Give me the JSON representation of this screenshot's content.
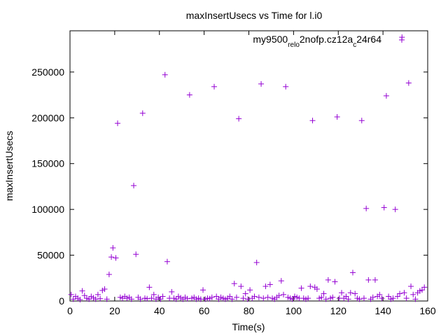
{
  "chart_data": {
    "type": "scatter",
    "title": "maxInsertUsecs vs Time for l.i0",
    "xlabel": "Time(s)",
    "ylabel": "maxInsertUsecs",
    "xlim": [
      0,
      160
    ],
    "ylim": [
      0,
      295000
    ],
    "xticks": [
      "0",
      "20",
      "40",
      "60",
      "80",
      "100",
      "120",
      "140",
      "160"
    ],
    "xtick_values": [
      0,
      20,
      40,
      60,
      80,
      100,
      120,
      140,
      160
    ],
    "yticks": [
      "0",
      "50000",
      "100000",
      "150000",
      "200000",
      "250000"
    ],
    "ytick_values": [
      0,
      50000,
      100000,
      150000,
      200000,
      250000
    ],
    "grid": false,
    "legend_position": "top-right",
    "marker": "+",
    "series": [
      {
        "name": "my9500_rel_o2nofp.cz12a_c24r64",
        "legend_parts": [
          {
            "text": "my9500",
            "sub": false
          },
          {
            "text": "rel",
            "sub": true
          },
          {
            "text": "o",
            "sub": true
          },
          {
            "text": "2nofp.cz12a",
            "sub": false
          },
          {
            "text": "c",
            "sub": true
          },
          {
            "text": "24r64",
            "sub": false
          }
        ],
        "color": "#9400d3",
        "points": [
          [
            0.5,
            7000
          ],
          [
            1.5,
            2000
          ],
          [
            2.5,
            5000
          ],
          [
            3.5,
            3000
          ],
          [
            4.5,
            1500
          ],
          [
            5.5,
            11000
          ],
          [
            6.5,
            6000
          ],
          [
            7.5,
            3000
          ],
          [
            8.5,
            2000
          ],
          [
            9.5,
            5000
          ],
          [
            10.5,
            3500
          ],
          [
            11.5,
            2000
          ],
          [
            12.5,
            7000
          ],
          [
            13.5,
            2500
          ],
          [
            14.5,
            11500
          ],
          [
            15.5,
            13000
          ],
          [
            16.5,
            2000
          ],
          [
            17.5,
            29000
          ],
          [
            18.5,
            48000
          ],
          [
            19.2,
            58000
          ],
          [
            20.5,
            47000
          ],
          [
            21.3,
            194000
          ],
          [
            22.5,
            4000
          ],
          [
            23.5,
            3000
          ],
          [
            24.5,
            5000
          ],
          [
            25.5,
            3000
          ],
          [
            26.5,
            4000
          ],
          [
            27.5,
            2000
          ],
          [
            28.5,
            126000
          ],
          [
            29.5,
            51000
          ],
          [
            30.5,
            4000
          ],
          [
            31.5,
            2000
          ],
          [
            32.5,
            205000
          ],
          [
            33.5,
            3000
          ],
          [
            34.5,
            2500
          ],
          [
            35.5,
            15000
          ],
          [
            36.5,
            3000
          ],
          [
            37.5,
            7000
          ],
          [
            38.5,
            2000
          ],
          [
            39.5,
            4000
          ],
          [
            40.5,
            2000
          ],
          [
            41.5,
            5000
          ],
          [
            42.5,
            247000
          ],
          [
            43.5,
            43000
          ],
          [
            44.5,
            3000
          ],
          [
            45.5,
            10000
          ],
          [
            46.5,
            3000
          ],
          [
            47.5,
            2000
          ],
          [
            48.5,
            5000
          ],
          [
            49.5,
            3500
          ],
          [
            50.5,
            2000
          ],
          [
            51.5,
            4000
          ],
          [
            52.5,
            2500
          ],
          [
            53.5,
            225000
          ],
          [
            54.5,
            3000
          ],
          [
            55.5,
            4000
          ],
          [
            56.5,
            2000
          ],
          [
            57.5,
            3000
          ],
          [
            58.5,
            2000
          ],
          [
            59.5,
            12000
          ],
          [
            60.5,
            2000
          ],
          [
            61.5,
            3000
          ],
          [
            62.5,
            2500
          ],
          [
            63.5,
            4000
          ],
          [
            64.5,
            234000
          ],
          [
            65.5,
            5000
          ],
          [
            66.5,
            2000
          ],
          [
            67.5,
            4000
          ],
          [
            68.5,
            3000
          ],
          [
            69.5,
            2000
          ],
          [
            70.5,
            3000
          ],
          [
            71.5,
            5000
          ],
          [
            72.5,
            2000
          ],
          [
            73.5,
            19000
          ],
          [
            74.5,
            4000
          ],
          [
            75.5,
            199000
          ],
          [
            76.5,
            16000
          ],
          [
            77.5,
            3000
          ],
          [
            78.5,
            8000
          ],
          [
            79.5,
            2000
          ],
          [
            80.5,
            12000
          ],
          [
            81.5,
            3000
          ],
          [
            82.5,
            5000
          ],
          [
            83.5,
            42000
          ],
          [
            84.5,
            4000
          ],
          [
            85.5,
            237000
          ],
          [
            86.5,
            3000
          ],
          [
            87.5,
            16000
          ],
          [
            88.5,
            4000
          ],
          [
            89.5,
            18000
          ],
          [
            90.5,
            3000
          ],
          [
            91.5,
            2000
          ],
          [
            92.5,
            4000
          ],
          [
            93.5,
            6000
          ],
          [
            94.5,
            22000
          ],
          [
            95.5,
            7000
          ],
          [
            96.5,
            234000
          ],
          [
            97.5,
            4000
          ],
          [
            98.5,
            3000
          ],
          [
            99.5,
            2000
          ],
          [
            100.5,
            5000
          ],
          [
            101.5,
            4000
          ],
          [
            102.5,
            3000
          ],
          [
            103.5,
            14000
          ],
          [
            104.5,
            3000
          ],
          [
            105.5,
            2000
          ],
          [
            106.5,
            3000
          ],
          [
            107.5,
            16000
          ],
          [
            108.5,
            197000
          ],
          [
            109.5,
            15000
          ],
          [
            110.5,
            13000
          ],
          [
            111.5,
            3000
          ],
          [
            112.5,
            4000
          ],
          [
            113.5,
            8000
          ],
          [
            114.5,
            2000
          ],
          [
            115.5,
            23000
          ],
          [
            116.5,
            3000
          ],
          [
            117.5,
            4000
          ],
          [
            118.5,
            21000
          ],
          [
            119.5,
            201000
          ],
          [
            120.5,
            3000
          ],
          [
            121.5,
            9000
          ],
          [
            122.5,
            3000
          ],
          [
            123.5,
            5000
          ],
          [
            124.5,
            2000
          ],
          [
            125.5,
            9000
          ],
          [
            126.5,
            31000
          ],
          [
            127.5,
            8000
          ],
          [
            128.5,
            3000
          ],
          [
            129.5,
            2000
          ],
          [
            130.5,
            197000
          ],
          [
            131.5,
            3000
          ],
          [
            132.5,
            101000
          ],
          [
            133.5,
            23000
          ],
          [
            134.5,
            2000
          ],
          [
            135.5,
            4000
          ],
          [
            136.5,
            23000
          ],
          [
            137.5,
            5000
          ],
          [
            138.5,
            7000
          ],
          [
            139.5,
            3000
          ],
          [
            140.5,
            102000
          ],
          [
            141.5,
            224000
          ],
          [
            142.5,
            5000
          ],
          [
            143.5,
            2000
          ],
          [
            144.5,
            3000
          ],
          [
            145.5,
            100000
          ],
          [
            146.5,
            5000
          ],
          [
            147.5,
            8000
          ],
          [
            148.5,
            288000
          ],
          [
            149.5,
            9000
          ],
          [
            150.5,
            3000
          ],
          [
            151.5,
            238000
          ],
          [
            152.5,
            16000
          ],
          [
            153.5,
            7000
          ],
          [
            154.5,
            2000
          ],
          [
            155.5,
            9000
          ],
          [
            156.5,
            11000
          ],
          [
            157.5,
            12000
          ],
          [
            158.5,
            15000
          ]
        ]
      }
    ]
  }
}
